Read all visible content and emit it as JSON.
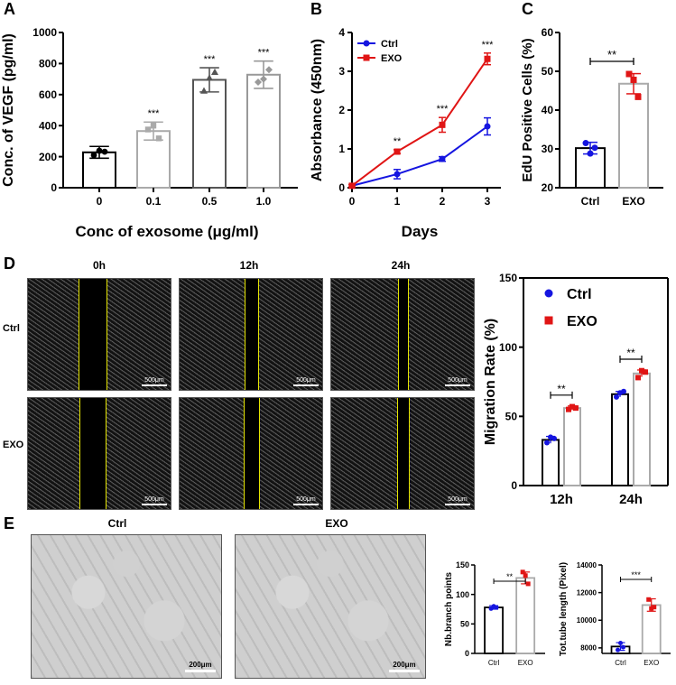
{
  "colors": {
    "ctrl_blue": "#1515e0",
    "exo_red": "#e01515",
    "black": "#000000",
    "gray": "#aaaaaa",
    "micro_bg": "#0a0a0a",
    "tube_bg": "#c8c8c8",
    "contour": "#e6e600"
  },
  "panel_labels": {
    "a": "A",
    "b": "B",
    "c": "C",
    "d": "D",
    "e": "E"
  },
  "chart_data": [
    {
      "id": "A",
      "type": "bar",
      "categories": [
        "0",
        "0.1",
        "0.5",
        "1.0"
      ],
      "values": [
        228,
        365,
        695,
        728
      ],
      "errors": [
        38,
        58,
        78,
        88
      ],
      "points": [
        [
          210,
          238,
          232
        ],
        [
          375,
          400,
          318
        ],
        [
          625,
          708,
          745
        ],
        [
          680,
          700,
          760
        ]
      ],
      "significance": [
        "",
        "***",
        "***",
        "***"
      ],
      "ylabel": "Conc. of VEGF (pg/ml)",
      "xlabel": "Conc of exosome (μg/ml)",
      "ylim": [
        0,
        1000
      ],
      "yticks": [
        "0",
        "200",
        "400",
        "600",
        "800",
        "1000"
      ]
    },
    {
      "id": "B",
      "type": "line",
      "x": [
        0,
        1,
        2,
        3
      ],
      "xticks": [
        "0",
        "1",
        "2",
        "3"
      ],
      "series": [
        {
          "name": "Ctrl",
          "values": [
            0.05,
            0.35,
            0.74,
            1.58
          ],
          "errors": [
            0.03,
            0.12,
            0.06,
            0.22
          ]
        },
        {
          "name": "EXO",
          "values": [
            0.05,
            0.93,
            1.62,
            3.32
          ],
          "errors": [
            0.03,
            0.05,
            0.19,
            0.15
          ]
        }
      ],
      "significance": [
        "",
        "**",
        "***",
        "***"
      ],
      "ylabel": "Absorbance (450nm)",
      "xlabel": "Days",
      "ylim": [
        0,
        4
      ],
      "yticks": [
        "0",
        "1",
        "2",
        "3",
        "4"
      ]
    },
    {
      "id": "C",
      "type": "bar",
      "categories": [
        "Ctrl",
        "EXO"
      ],
      "values": [
        30.2,
        46.8
      ],
      "errors": [
        1.5,
        2.6
      ],
      "points": [
        [
          31.5,
          28.8,
          30.3
        ],
        [
          49.3,
          47.8,
          43.4
        ]
      ],
      "significance_label": "**",
      "ylabel": "EdU Positive Cells (%)",
      "ylim": [
        20,
        60
      ],
      "yticks": [
        "20",
        "30",
        "40",
        "50",
        "60"
      ]
    },
    {
      "id": "D",
      "type": "bar",
      "categories": [
        "12h",
        "24h"
      ],
      "series": [
        {
          "name": "Ctrl",
          "values": [
            33,
            66
          ],
          "errors": [
            2.5,
            2
          ],
          "points": [
            [
              31,
              35,
              34
            ],
            [
              64,
              67,
              68
            ]
          ]
        },
        {
          "name": "EXO",
          "values": [
            56,
            81
          ],
          "errors": [
            1.5,
            2.5
          ],
          "points": [
            [
              55,
              57,
              56
            ],
            [
              78,
              83,
              82
            ]
          ]
        }
      ],
      "significance": [
        "**",
        "**"
      ],
      "ylabel": "Migration Rate (%)",
      "ylim": [
        0,
        150
      ],
      "yticks": [
        "0",
        "50",
        "100",
        "150"
      ]
    },
    {
      "id": "E1",
      "type": "bar",
      "categories": [
        "Ctrl",
        "EXO"
      ],
      "values": [
        78,
        128
      ],
      "errors": [
        3,
        10
      ],
      "points": [
        [
          76,
          80,
          78
        ],
        [
          138,
          132,
          118
        ]
      ],
      "significance_label": "**",
      "ylabel": "Nb.branch points",
      "ylim": [
        0,
        150
      ],
      "yticks": [
        "0",
        "50",
        "100",
        "150"
      ]
    },
    {
      "id": "E2",
      "type": "bar",
      "categories": [
        "Ctrl",
        "EXO"
      ],
      "values": [
        8100,
        11100
      ],
      "errors": [
        280,
        450
      ],
      "points": [
        [
          7850,
          8350,
          8050
        ],
        [
          11500,
          10850,
          10950
        ]
      ],
      "significance_label": "***",
      "ylabel": "Tot.tube length (Pixel)",
      "ylim": [
        7600,
        14000
      ],
      "yticks": [
        "8000",
        "10000",
        "12000",
        "14000"
      ]
    }
  ],
  "panel_d": {
    "columns": [
      "0h",
      "12h",
      "24h"
    ],
    "rows": [
      "Ctrl",
      "EXO"
    ],
    "scale_bar": "500μm"
  },
  "panel_e": {
    "columns": [
      "Ctrl",
      "EXO"
    ],
    "scale_bar": "200μm"
  }
}
